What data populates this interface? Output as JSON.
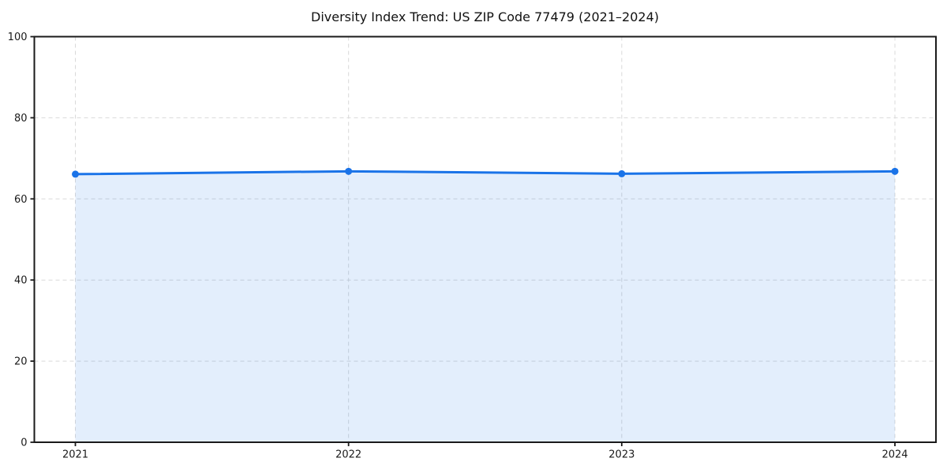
{
  "chart_data": {
    "type": "area",
    "title": "Diversity Index Trend: US ZIP Code 77479 (2021–2024)",
    "categories": [
      "2021",
      "2022",
      "2023",
      "2024"
    ],
    "x": [
      2021,
      2022,
      2023,
      2024
    ],
    "series": [
      {
        "name": "Diversity Index",
        "values": [
          66.1,
          66.8,
          66.2,
          66.8
        ]
      }
    ],
    "xlabel": "",
    "ylabel": "",
    "ylim": [
      0,
      100
    ],
    "yticks": [
      0,
      20,
      40,
      60,
      80,
      100
    ],
    "grid": true,
    "grid_style": "dashed",
    "legend": false,
    "marker": "circle",
    "colors": {
      "line": "#1a73e8",
      "marker": "#1a73e8",
      "fill": "rgba(26,115,232,0.12)",
      "grid": "#d9d9d9",
      "axis": "#1a1a1a",
      "tick_label": "#1a1a1a",
      "title": "#111111",
      "background": "#ffffff"
    }
  }
}
